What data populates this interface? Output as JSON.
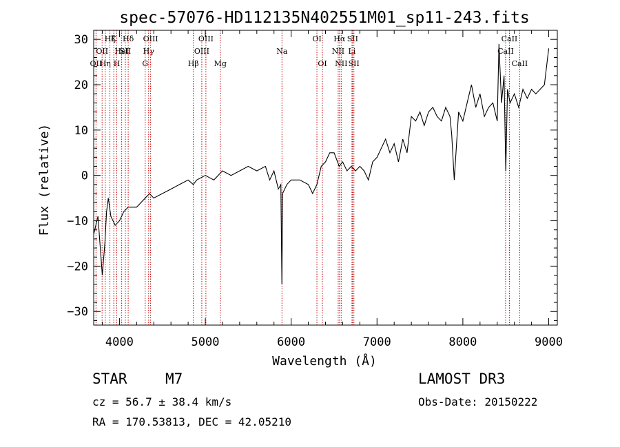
{
  "chart_data": {
    "type": "line",
    "title": "spec-57076-HD112135N402551M01_sp11-243.fits",
    "xlabel": "Wavelength (Å)",
    "ylabel": "Flux (relative)",
    "xlim": [
      3700,
      9100
    ],
    "ylim": [
      -33,
      32
    ],
    "xticks": [
      4000,
      5000,
      6000,
      7000,
      8000,
      9000
    ],
    "yticks": [
      -30,
      -20,
      -10,
      0,
      10,
      20,
      30
    ],
    "series": [
      {
        "name": "flux",
        "color": "#000000",
        "x": [
          3700,
          3750,
          3800,
          3830,
          3850,
          3870,
          3900,
          3950,
          4000,
          4050,
          4100,
          4200,
          4300,
          4350,
          4400,
          4500,
          4600,
          4700,
          4800,
          4860,
          4900,
          5000,
          5100,
          5200,
          5300,
          5400,
          5500,
          5600,
          5700,
          5750,
          5800,
          5850,
          5880,
          5892,
          5900,
          5950,
          6000,
          6100,
          6200,
          6250,
          6300,
          6350,
          6400,
          6450,
          6500,
          6560,
          6600,
          6650,
          6700,
          6750,
          6800,
          6850,
          6900,
          6950,
          7000,
          7050,
          7100,
          7150,
          7200,
          7250,
          7300,
          7350,
          7400,
          7450,
          7500,
          7550,
          7600,
          7650,
          7700,
          7750,
          7800,
          7850,
          7870,
          7900,
          7950,
          8000,
          8050,
          8100,
          8150,
          8200,
          8250,
          8300,
          8350,
          8400,
          8420,
          8450,
          8480,
          8500,
          8520,
          8550,
          8600,
          8650,
          8700,
          8750,
          8800,
          8850,
          8900,
          8950,
          9000
        ],
        "values": [
          -13,
          -9,
          -22,
          -15,
          -8,
          -5,
          -9,
          -11,
          -10,
          -8,
          -7,
          -7,
          -5,
          -4,
          -5,
          -4,
          -3,
          -2,
          -1,
          -2,
          -1,
          0,
          -1,
          1,
          0,
          1,
          2,
          1,
          2,
          -1,
          1,
          -3,
          -2,
          -24,
          -4,
          -2,
          -1,
          -1,
          -2,
          -4,
          -2,
          2,
          3,
          5,
          5,
          2,
          3,
          1,
          2,
          1,
          2,
          1,
          -1,
          3,
          4,
          6,
          8,
          5,
          7,
          3,
          8,
          5,
          13,
          12,
          14,
          11,
          14,
          15,
          13,
          12,
          15,
          13,
          9,
          -1,
          14,
          12,
          16,
          20,
          15,
          18,
          13,
          15,
          16,
          12,
          29,
          16,
          22,
          1,
          19,
          16,
          18,
          15,
          19,
          17,
          19,
          18,
          19,
          20,
          28
        ]
      }
    ],
    "lines": [
      {
        "wavelength": 3727,
        "labels": [
          "OII"
        ],
        "row": 3
      },
      {
        "wavelength": 3798,
        "labels": [
          "OII"
        ],
        "row": 2
      },
      {
        "wavelength": 3835,
        "labels": [
          "Hη"
        ],
        "row": 3
      },
      {
        "wavelength": 3889,
        "labels": [
          "Hζ"
        ],
        "row": 1
      },
      {
        "wavelength": 3934,
        "labels": [
          "K"
        ],
        "row": 1
      },
      {
        "wavelength": 3969,
        "labels": [
          "H"
        ],
        "row": 3
      },
      {
        "wavelength": 4026,
        "labels": [
          "HeI"
        ],
        "row": 2
      },
      {
        "wavelength": 4069,
        "labels": [
          "SII"
        ],
        "row": 2
      },
      {
        "wavelength": 4102,
        "labels": [
          "Hδ"
        ],
        "row": 1
      },
      {
        "wavelength": 4300,
        "labels": [
          "G"
        ],
        "row": 3
      },
      {
        "wavelength": 4340,
        "labels": [
          "Hγ"
        ],
        "row": 2
      },
      {
        "wavelength": 4363,
        "labels": [
          "OIII"
        ],
        "row": 1
      },
      {
        "wavelength": 4861,
        "labels": [
          "Hβ"
        ],
        "row": 3
      },
      {
        "wavelength": 4959,
        "labels": [
          "OIII"
        ],
        "row": 2
      },
      {
        "wavelength": 5007,
        "labels": [
          "OIII"
        ],
        "row": 1
      },
      {
        "wavelength": 5175,
        "labels": [
          "Mg"
        ],
        "row": 3
      },
      {
        "wavelength": 5893,
        "labels": [
          "Na"
        ],
        "row": 2
      },
      {
        "wavelength": 6300,
        "labels": [
          "OI"
        ],
        "row": 1
      },
      {
        "wavelength": 6364,
        "labels": [
          "OI"
        ],
        "row": 3
      },
      {
        "wavelength": 6548,
        "labels": [
          "NII"
        ],
        "row": 2
      },
      {
        "wavelength": 6563,
        "labels": [
          "Hα"
        ],
        "row": 1
      },
      {
        "wavelength": 6583,
        "labels": [
          "NII"
        ],
        "row": 3
      },
      {
        "wavelength": 6708,
        "labels": [
          "Li"
        ],
        "row": 2
      },
      {
        "wavelength": 6716,
        "labels": [
          "SII"
        ],
        "row": 1
      },
      {
        "wavelength": 6731,
        "labels": [
          "SII"
        ],
        "row": 3
      },
      {
        "wavelength": 8498,
        "labels": [
          "CaII"
        ],
        "row": 2
      },
      {
        "wavelength": 8542,
        "labels": [
          "CaII"
        ],
        "row": 1
      },
      {
        "wavelength": 8662,
        "labels": [
          "CaII"
        ],
        "row": 3
      }
    ]
  },
  "info": {
    "object_class": "STAR",
    "subclass": "M7",
    "survey": "LAMOST DR3",
    "redshift": "cz = 56.7 ± 38.4 km/s",
    "obs_date": "Obs-Date: 20150222",
    "coords": "RA = 170.53813, DEC =  42.05210"
  },
  "colors": {
    "spectrum": "#000000",
    "line_markers": "#c00000",
    "axes": "#000000"
  }
}
